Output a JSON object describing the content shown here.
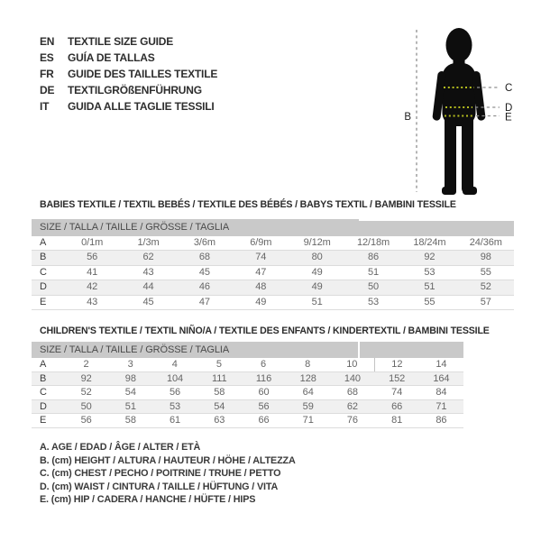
{
  "languages": {
    "items": [
      {
        "code": "EN",
        "title": "TEXTILE SIZE GUIDE"
      },
      {
        "code": "ES",
        "title": "GUÍA DE TALLAS"
      },
      {
        "code": "FR",
        "title": "GUIDE DES TAILLES TEXTILE"
      },
      {
        "code": "DE",
        "title": "TEXTILGRÖßENFÜHRUNG"
      },
      {
        "code": "IT",
        "title": "GUIDA ALLE TAGLIE TESSILI"
      }
    ]
  },
  "figure": {
    "height_label": "B",
    "chest_label": "C",
    "waist_label": "D",
    "hip_label": "E"
  },
  "babies": {
    "title": "BABIES TEXTILE / TEXTIL BEBÉS / TEXTILE DES BÉBÉS / BABYS TEXTIL  / BAMBINI TESSILE",
    "size_header": "SIZE / TALLA / TAILLE / GRÖSSE / TAGLIA",
    "rows": [
      {
        "label": "A",
        "values": [
          "0/1m",
          "1/3m",
          "3/6m",
          "6/9m",
          "9/12m",
          "12/18m",
          "18/24m",
          "24/36m"
        ]
      },
      {
        "label": "B",
        "values": [
          "56",
          "62",
          "68",
          "74",
          "80",
          "86",
          "92",
          "98"
        ]
      },
      {
        "label": "C",
        "values": [
          "41",
          "43",
          "45",
          "47",
          "49",
          "51",
          "53",
          "55"
        ]
      },
      {
        "label": "D",
        "values": [
          "42",
          "44",
          "46",
          "48",
          "49",
          "50",
          "51",
          "52"
        ]
      },
      {
        "label": "E",
        "values": [
          "43",
          "45",
          "47",
          "49",
          "51",
          "53",
          "55",
          "57"
        ]
      }
    ]
  },
  "children": {
    "title": "CHILDREN'S TEXTILE / TEXTIL NIÑO/A / TEXTILE DES ENFANTS / KINDERTEXTIL / BAMBINI TESSILE",
    "size_header": "SIZE / TALLA / TAILLE / GRÖSSE / TAGLIA",
    "rows": [
      {
        "label": "A",
        "values": [
          "2",
          "3",
          "4",
          "5",
          "6",
          "8",
          "10",
          "12",
          "14"
        ]
      },
      {
        "label": "B",
        "values": [
          "92",
          "98",
          "104",
          "111",
          "116",
          "128",
          "140",
          "152",
          "164"
        ]
      },
      {
        "label": "C",
        "values": [
          "52",
          "54",
          "56",
          "58",
          "60",
          "64",
          "68",
          "74",
          "84"
        ]
      },
      {
        "label": "D",
        "values": [
          "50",
          "51",
          "53",
          "54",
          "56",
          "59",
          "62",
          "66",
          "71"
        ]
      },
      {
        "label": "E",
        "values": [
          "56",
          "58",
          "61",
          "63",
          "66",
          "71",
          "76",
          "81",
          "86"
        ]
      }
    ]
  },
  "legend": {
    "items": [
      "A. AGE / EDAD / ÂGE / ALTER / ETÀ",
      "B. (cm) HEIGHT / ALTURA / HAUTEUR / HÖHE / ALTEZZA",
      "C. (cm) CHEST / PECHO / POITRINE / TRUHE / PETTO",
      "D. (cm) WAIST / CINTURA / TAILLE / HÜFTUNG / VITA",
      "E. (cm) HIP / CADERA / HANCHE / HÜFTE / HIPS"
    ]
  },
  "colors": {
    "header_bar": "#c9c9c9",
    "row_stripe": "#f0f0f0",
    "measure_accent": "#b5bd1e",
    "dash_gray": "#8f8f8f",
    "silhouette": "#0d0d0d"
  }
}
